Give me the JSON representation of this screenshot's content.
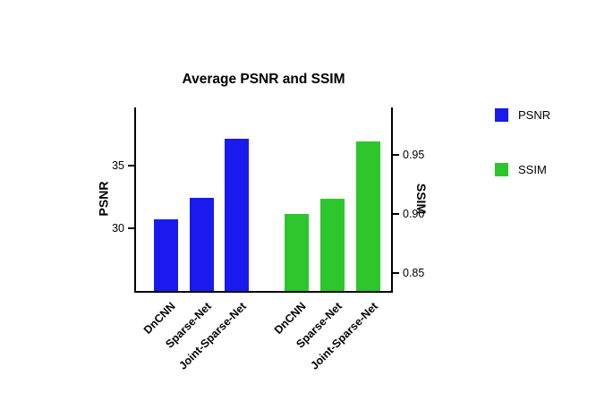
{
  "chart_data": {
    "type": "bar",
    "title": "Average PSNR and SSIM",
    "categories": [
      "DnCNN",
      "Sparse-Net",
      "Joint-Sparse-Net"
    ],
    "series": [
      {
        "name": "PSNR",
        "axis": "left",
        "color": "#1A1AEE",
        "values": [
          30.7,
          32.4,
          37.1
        ]
      },
      {
        "name": "SSIM",
        "axis": "right",
        "color": "#2DC62D",
        "values": [
          0.9,
          0.913,
          0.961
        ]
      }
    ],
    "axes": {
      "left": {
        "label": "PSNR",
        "ylim": [
          25,
          39.6
        ],
        "ticks": [
          {
            "v": 30,
            "label": "30"
          },
          {
            "v": 35,
            "label": "35"
          }
        ]
      },
      "right": {
        "label": "SSIM",
        "ylim": [
          0.835,
          0.99
        ],
        "ticks": [
          {
            "v": 0.85,
            "label": "0.85"
          },
          {
            "v": 0.9,
            "label": "0.90"
          },
          {
            "v": 0.95,
            "label": "0.95"
          }
        ]
      }
    },
    "legend": {
      "position": "right",
      "entries": [
        "PSNR",
        "SSIM"
      ]
    },
    "grid": false
  }
}
